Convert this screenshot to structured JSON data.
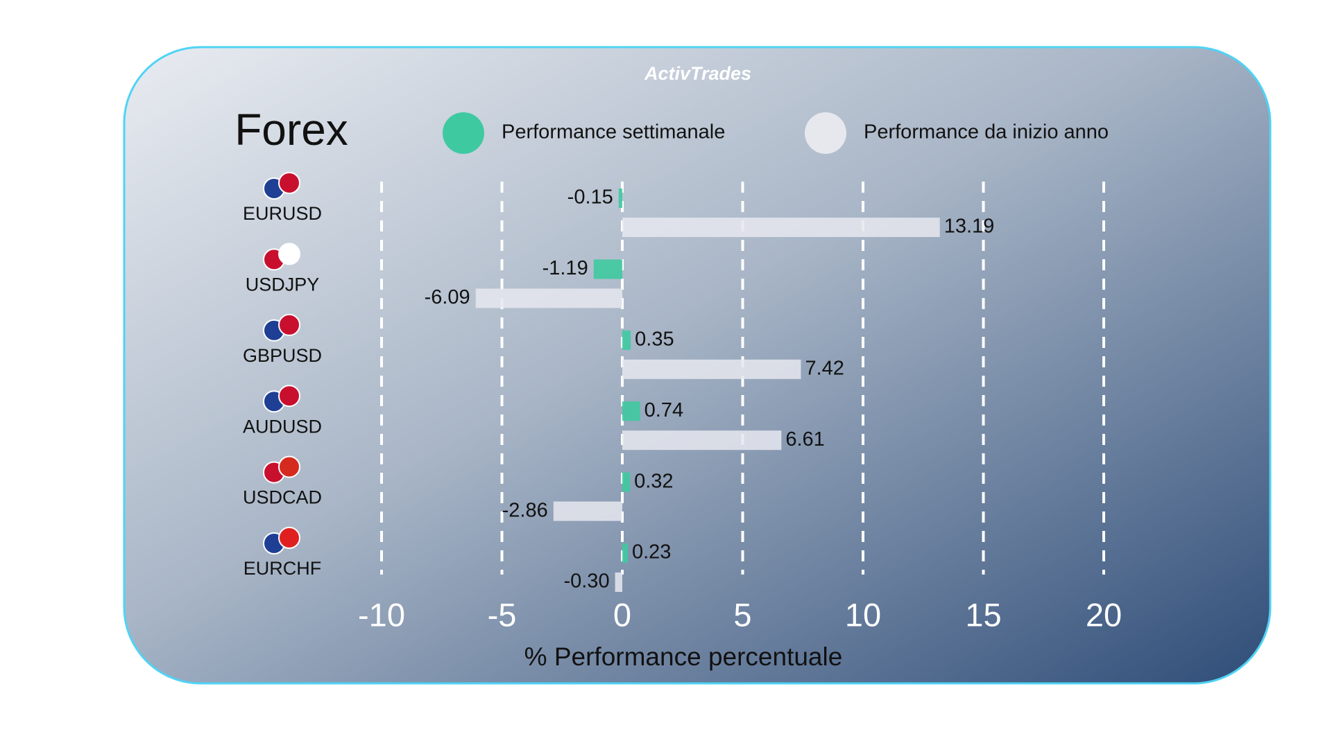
{
  "logo": "ActivTrades",
  "chart_data": {
    "type": "hbar",
    "title": "Forex",
    "xlabel": "% Performance percentuale",
    "categories": [
      "EURUSD",
      "USDJPY",
      "GBPUSD",
      "AUDUSD",
      "USDCAD",
      "EURCHF"
    ],
    "series": [
      {
        "name": "Performance settimanale",
        "color": "#3fc9a0",
        "values": [
          -0.15,
          -1.19,
          0.35,
          0.74,
          0.32,
          0.23
        ],
        "value_labels": [
          "-0.15",
          "-1.19",
          "0.35",
          "0.74",
          "0.32",
          "0.23"
        ]
      },
      {
        "name": "Performance da inizio anno",
        "color": "#e6e8ee",
        "values": [
          13.19,
          -6.09,
          7.42,
          6.61,
          -2.86,
          -0.3
        ],
        "value_labels": [
          "13.19",
          "-6.09",
          "7.42",
          "6.61",
          "-2.86",
          "-0.30"
        ]
      }
    ],
    "xlim": [
      -10,
      20
    ],
    "xticks": [
      -10,
      -5,
      0,
      5,
      10,
      15,
      20
    ],
    "grid": true
  }
}
